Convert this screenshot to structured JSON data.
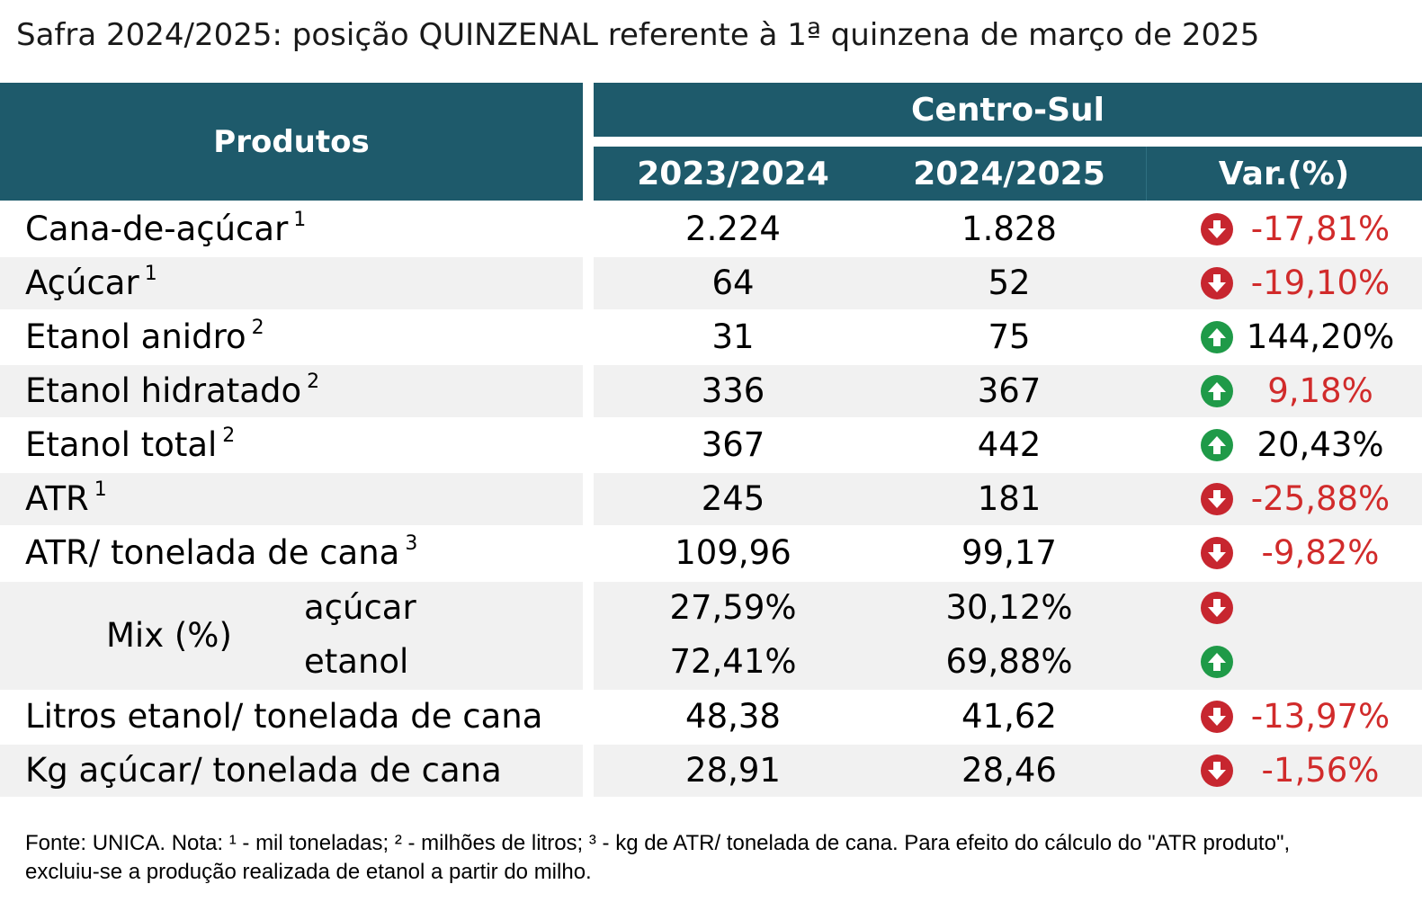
{
  "title": "Safra 2024/2025: posição QUINZENAL referente à 1ª quinzena de março de 2025",
  "header": {
    "produtos": "Produtos",
    "region": "Centro-Sul",
    "col_2023": "2023/2024",
    "col_2024": "2024/2025",
    "col_var": "Var.(%)"
  },
  "colors": {
    "header_bg": "#1e5a6b",
    "negative": "#d12b2b",
    "down_icon": "#c7262f",
    "up_icon": "#1f9a48"
  },
  "rows": [
    {
      "label": "Cana-de-açúcar",
      "note": "1",
      "v2023": "2.224",
      "v2024": "1.828",
      "var": "-17,81%",
      "trend": "down-arrow-icon"
    },
    {
      "label": "Açúcar",
      "note": "1",
      "v2023": "64",
      "v2024": "52",
      "var": "-19,10%",
      "trend": "down-arrow-icon"
    },
    {
      "label": "Etanol anidro",
      "note": "2",
      "v2023": "31",
      "v2024": "75",
      "var": "144,20%",
      "trend": "up-arrow-icon"
    },
    {
      "label": "Etanol hidratado",
      "note": "2",
      "v2023": "336",
      "v2024": "367",
      "var": "9,18%",
      "trend": "up-arrow-icon"
    },
    {
      "label": "Etanol total",
      "note": "2",
      "v2023": "367",
      "v2024": "442",
      "var": "20,43%",
      "trend": "up-arrow-icon"
    },
    {
      "label": "ATR",
      "note": "1",
      "v2023": "245",
      "v2024": "181",
      "var": "-25,88%",
      "trend": "down-arrow-icon"
    },
    {
      "label": "ATR/ tonelada de cana",
      "note": "3",
      "v2023": "109,96",
      "v2024": "99,17",
      "var": "-9,82%",
      "trend": "down-arrow-icon"
    }
  ],
  "mix": {
    "label": "Mix (%)",
    "acucar": {
      "label": "açúcar",
      "v2023": "27,59%",
      "v2024": "30,12%",
      "trend": "down-arrow-icon"
    },
    "etanol": {
      "label": "etanol",
      "v2023": "72,41%",
      "v2024": "69,88%",
      "trend": "up-arrow-icon"
    }
  },
  "rows_after": [
    {
      "label": "Litros etanol/ tonelada de cana",
      "v2023": "48,38",
      "v2024": "41,62",
      "var": "-13,97%",
      "trend": "down-arrow-icon"
    },
    {
      "label": "Kg açúcar/ tonelada de cana",
      "v2023": "28,91",
      "v2024": "28,46",
      "var": "-1,56%",
      "trend": "down-arrow-icon"
    }
  ],
  "footer": {
    "line1": "Fonte: UNICA. Nota: ¹ - mil toneladas; ² - milhões de litros; ³ - kg de ATR/ tonelada de cana. Para efeito do cálculo do \"ATR produto\",",
    "line2": "excluiu-se a produção realizada de etanol a partir do milho."
  }
}
